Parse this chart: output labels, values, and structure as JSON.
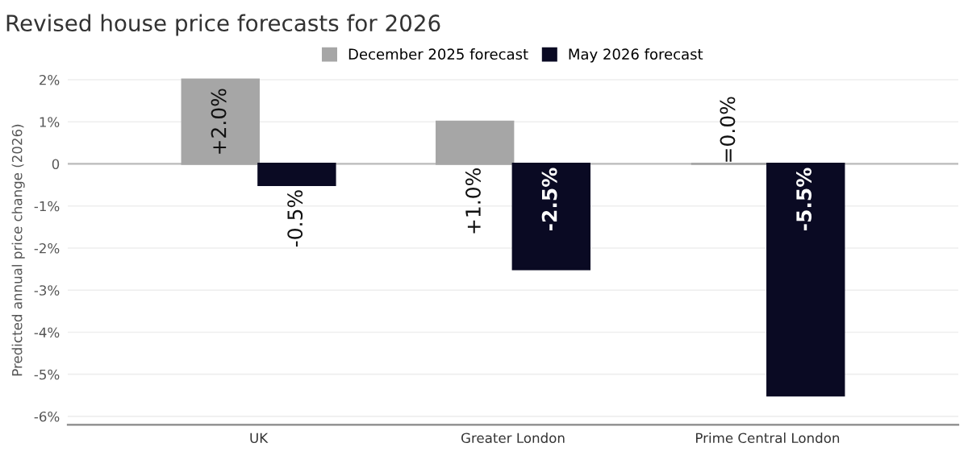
{
  "chart_data": {
    "type": "bar",
    "title": "Revised house price forecasts for 2026",
    "ylabel": "Predicted annual price change (2026)",
    "categories": [
      "UK",
      "Greater London",
      "Prime Central London"
    ],
    "series": [
      {
        "name": "December 2025 forecast",
        "color": "#a6a6a6",
        "values": [
          2.0,
          1.0,
          0.0
        ],
        "value_labels": [
          "+2.0%",
          "+1.0%",
          "=0.0%"
        ]
      },
      {
        "name": "May 2026 forecast",
        "color": "#0a0a23",
        "values": [
          -0.5,
          -2.5,
          -5.5
        ],
        "value_labels": [
          "-0.5%",
          "-2.5%",
          "-5.5%"
        ]
      }
    ],
    "ylim": [
      -6.2,
      2.1
    ],
    "yticks": [
      {
        "value": 2,
        "label": "2%"
      },
      {
        "value": 1,
        "label": "1%"
      },
      0,
      {
        "value": -1,
        "label": "-1%"
      },
      {
        "value": -2,
        "label": "-2%"
      },
      {
        "value": -3,
        "label": "-3%"
      },
      {
        "value": -4,
        "label": "-4%"
      },
      {
        "value": -5,
        "label": "-5%"
      },
      {
        "value": -6,
        "label": "-6%"
      }
    ],
    "grid": "y",
    "legend": "top"
  }
}
